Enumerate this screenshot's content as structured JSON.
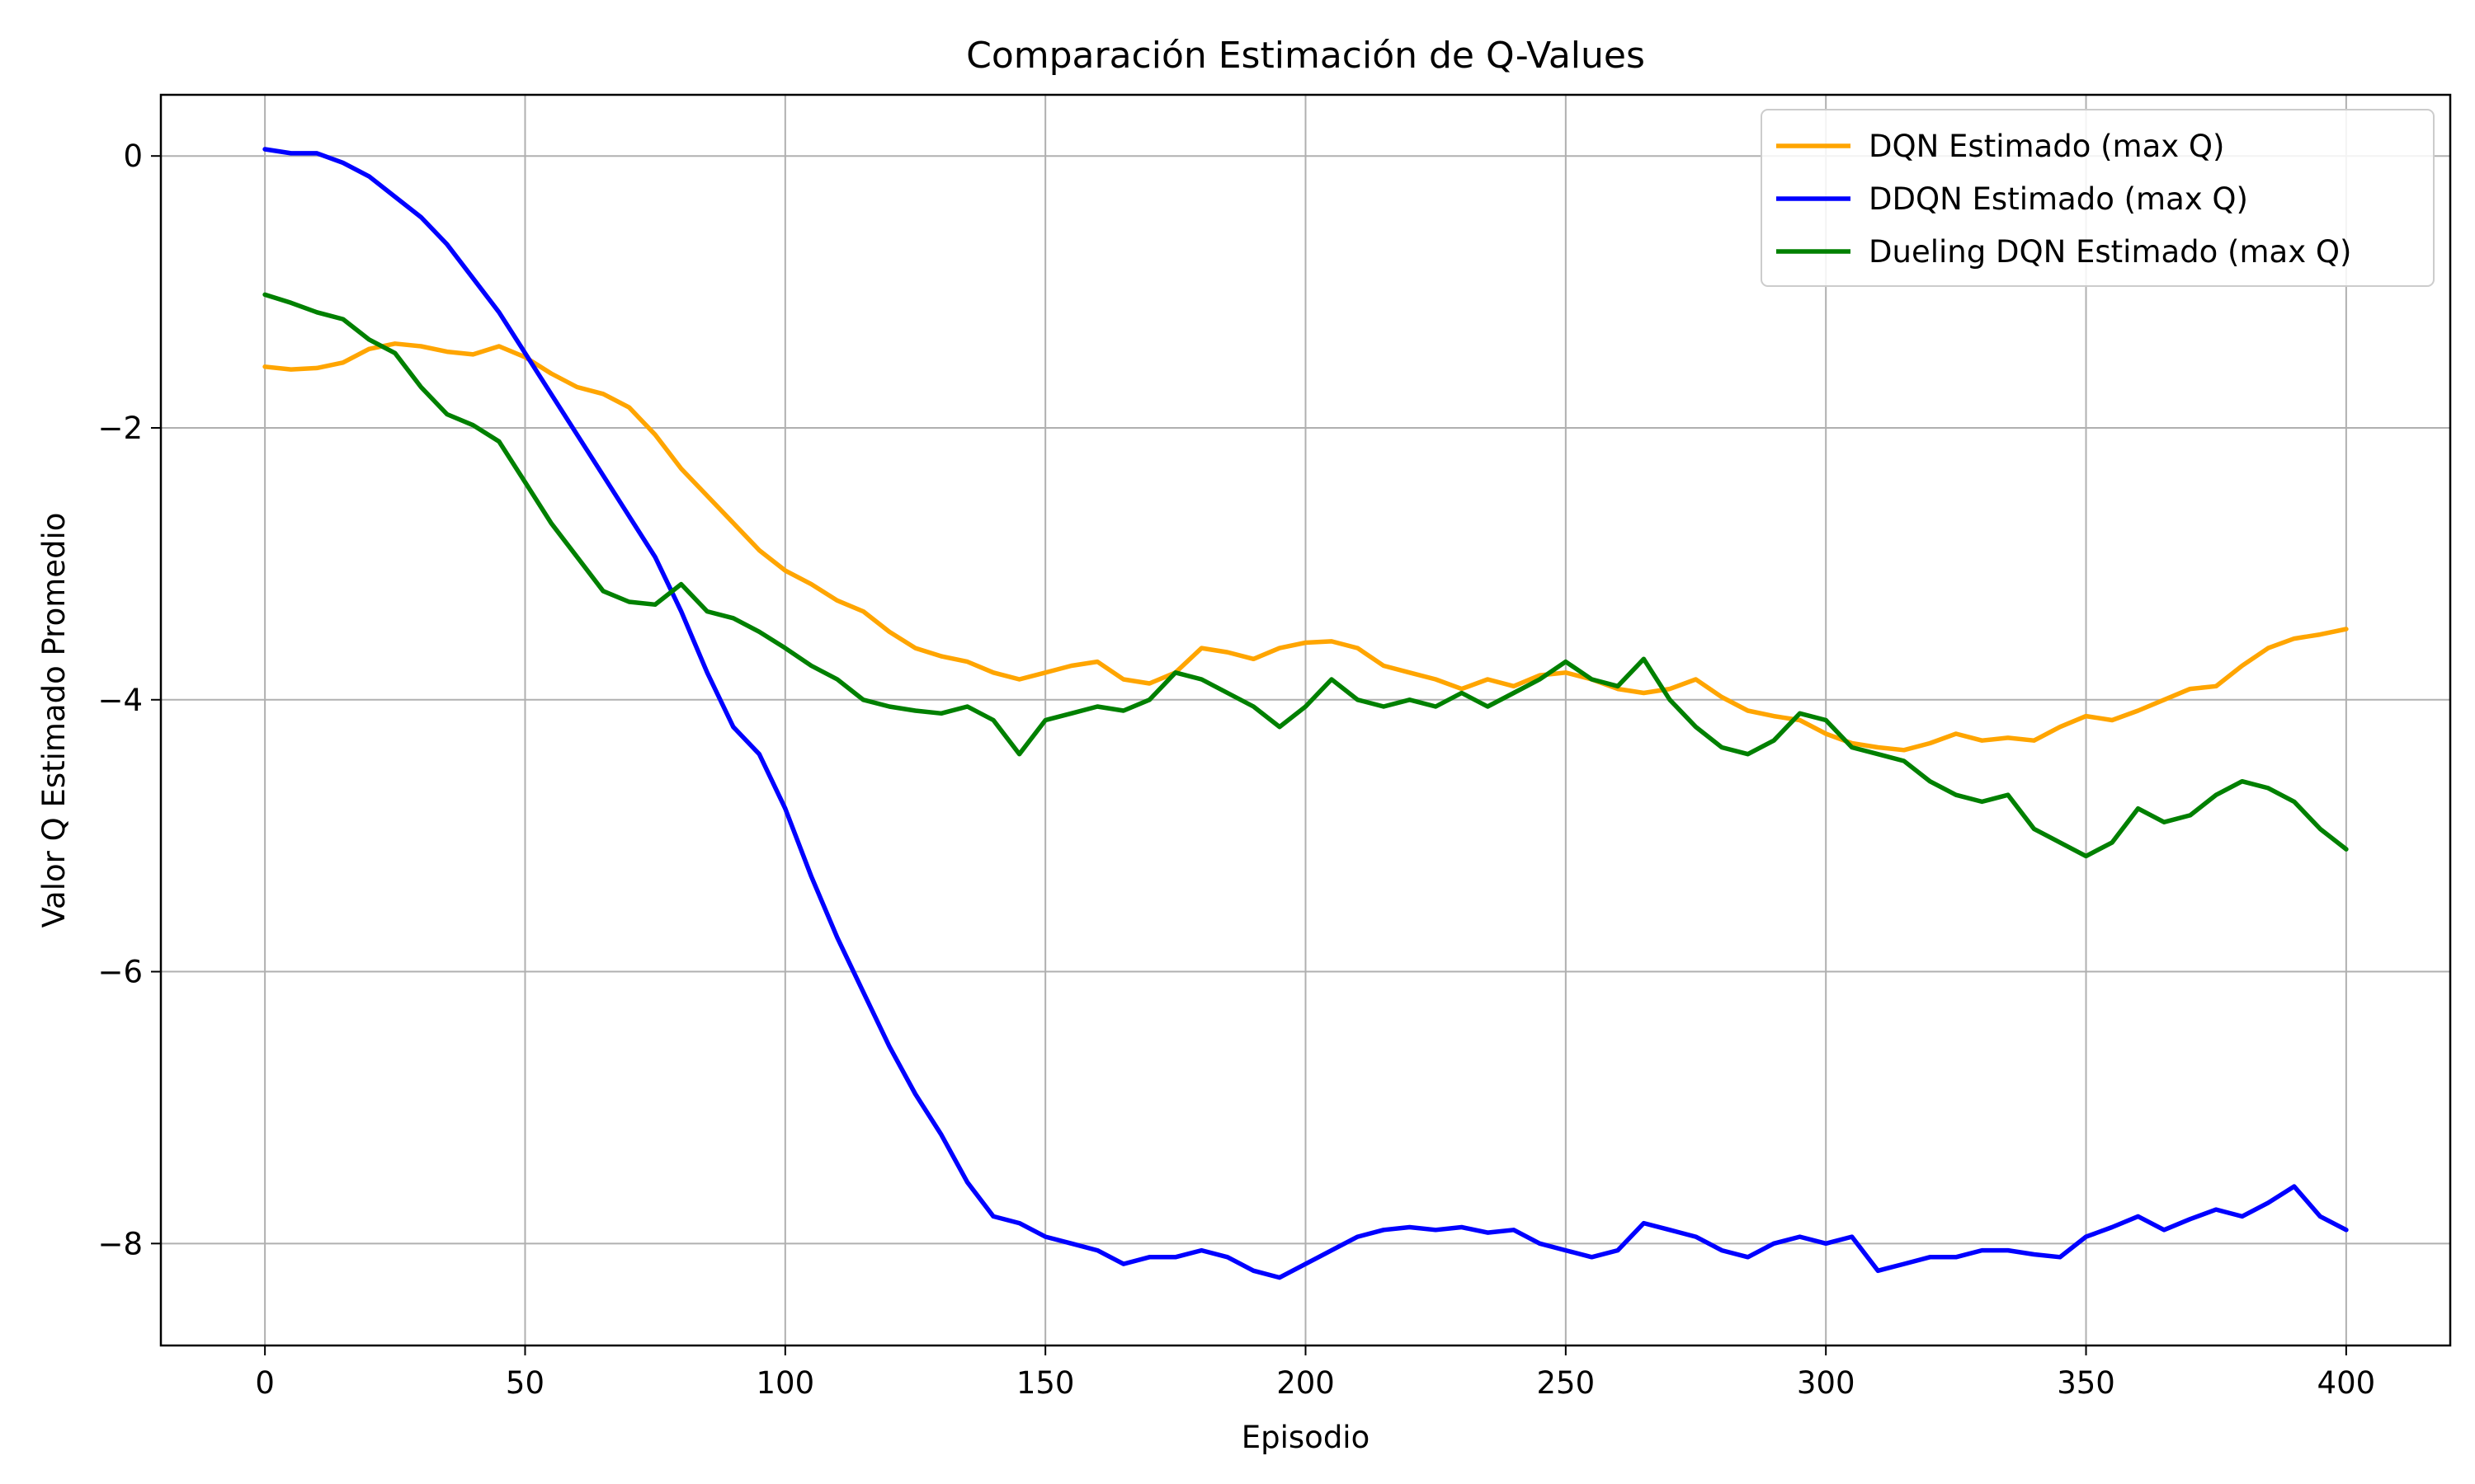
{
  "chart_data": {
    "type": "line",
    "title": "Comparación Estimación de Q-Values",
    "xlabel": "Episodio",
    "ylabel": "Valor Q Estimado Promedio",
    "xlim": [
      -20,
      420
    ],
    "ylim": [
      -8.75,
      0.45
    ],
    "x_ticks": [
      0,
      50,
      100,
      150,
      200,
      250,
      300,
      350,
      400
    ],
    "x_tick_labels": [
      "0",
      "50",
      "100",
      "150",
      "200",
      "250",
      "300",
      "350",
      "400"
    ],
    "y_ticks": [
      0,
      -2,
      -4,
      -6,
      -8
    ],
    "y_tick_labels": [
      "0",
      "−2",
      "−4",
      "−6",
      "−8"
    ],
    "grid": true,
    "legend_position": "top-right",
    "series": [
      {
        "name": "DQN Estimado (max Q)",
        "color": "#ffa500",
        "x": [
          0,
          5,
          10,
          15,
          20,
          25,
          30,
          35,
          40,
          45,
          50,
          55,
          60,
          65,
          70,
          75,
          80,
          85,
          90,
          95,
          100,
          105,
          110,
          115,
          120,
          125,
          130,
          135,
          140,
          145,
          150,
          155,
          160,
          165,
          170,
          175,
          180,
          185,
          190,
          195,
          200,
          205,
          210,
          215,
          220,
          225,
          230,
          235,
          240,
          245,
          250,
          255,
          260,
          265,
          270,
          275,
          280,
          285,
          290,
          295,
          300,
          305,
          310,
          315,
          320,
          325,
          330,
          335,
          340,
          345,
          350,
          355,
          360,
          365,
          370,
          375,
          380,
          385,
          390,
          395,
          400
        ],
        "y": [
          -1.55,
          -1.57,
          -1.56,
          -1.52,
          -1.42,
          -1.38,
          -1.4,
          -1.44,
          -1.46,
          -1.4,
          -1.48,
          -1.6,
          -1.7,
          -1.75,
          -1.85,
          -2.05,
          -2.3,
          -2.5,
          -2.7,
          -2.9,
          -3.05,
          -3.15,
          -3.27,
          -3.35,
          -3.5,
          -3.62,
          -3.68,
          -3.72,
          -3.8,
          -3.85,
          -3.8,
          -3.75,
          -3.72,
          -3.85,
          -3.88,
          -3.8,
          -3.62,
          -3.65,
          -3.7,
          -3.62,
          -3.58,
          -3.57,
          -3.62,
          -3.75,
          -3.8,
          -3.85,
          -3.92,
          -3.85,
          -3.9,
          -3.82,
          -3.8,
          -3.85,
          -3.92,
          -3.95,
          -3.92,
          -3.85,
          -3.98,
          -4.08,
          -4.12,
          -4.15,
          -4.25,
          -4.32,
          -4.35,
          -4.37,
          -4.32,
          -4.25,
          -4.3,
          -4.28,
          -4.3,
          -4.2,
          -4.12,
          -4.15,
          -4.08,
          -4.0,
          -3.92,
          -3.9,
          -3.75,
          -3.62,
          -3.55,
          -3.52,
          -3.48
        ]
      },
      {
        "name": "DDQN Estimado (max Q)",
        "color": "#0000ff",
        "x": [
          0,
          5,
          10,
          15,
          20,
          25,
          30,
          35,
          40,
          45,
          50,
          55,
          60,
          65,
          70,
          75,
          80,
          85,
          90,
          95,
          100,
          105,
          110,
          115,
          120,
          125,
          130,
          135,
          140,
          145,
          150,
          155,
          160,
          165,
          170,
          175,
          180,
          185,
          190,
          195,
          200,
          205,
          210,
          215,
          220,
          225,
          230,
          235,
          240,
          245,
          250,
          255,
          260,
          265,
          270,
          275,
          280,
          285,
          290,
          295,
          300,
          305,
          310,
          315,
          320,
          325,
          330,
          335,
          340,
          345,
          350,
          355,
          360,
          365,
          370,
          375,
          380,
          385,
          390,
          395,
          400
        ],
        "y": [
          0.05,
          0.02,
          0.02,
          -0.05,
          -0.15,
          -0.3,
          -0.45,
          -0.65,
          -0.9,
          -1.15,
          -1.45,
          -1.75,
          -2.05,
          -2.35,
          -2.65,
          -2.95,
          -3.35,
          -3.8,
          -4.2,
          -4.4,
          -4.8,
          -5.3,
          -5.75,
          -6.15,
          -6.55,
          -6.9,
          -7.2,
          -7.55,
          -7.8,
          -7.85,
          -7.95,
          -8.0,
          -8.05,
          -8.15,
          -8.1,
          -8.1,
          -8.05,
          -8.1,
          -8.2,
          -8.25,
          -8.15,
          -8.05,
          -7.95,
          -7.9,
          -7.88,
          -7.9,
          -7.88,
          -7.92,
          -7.9,
          -8.0,
          -8.05,
          -8.1,
          -8.05,
          -7.85,
          -7.9,
          -7.95,
          -8.05,
          -8.1,
          -8.0,
          -7.95,
          -8.0,
          -7.95,
          -8.2,
          -8.15,
          -8.1,
          -8.1,
          -8.05,
          -8.05,
          -8.08,
          -8.1,
          -7.95,
          -7.88,
          -7.8,
          -7.9,
          -7.82,
          -7.75,
          -7.8,
          -7.7,
          -7.58,
          -7.8,
          -7.9
        ]
      },
      {
        "name": "Dueling DQN Estimado (max Q)",
        "color": "#008000",
        "x": [
          0,
          5,
          10,
          15,
          20,
          25,
          30,
          35,
          40,
          45,
          50,
          55,
          60,
          65,
          70,
          75,
          80,
          85,
          90,
          95,
          100,
          105,
          110,
          115,
          120,
          125,
          130,
          135,
          140,
          145,
          150,
          155,
          160,
          165,
          170,
          175,
          180,
          185,
          190,
          195,
          200,
          205,
          210,
          215,
          220,
          225,
          230,
          235,
          240,
          245,
          250,
          255,
          260,
          265,
          270,
          275,
          280,
          285,
          290,
          295,
          300,
          305,
          310,
          315,
          320,
          325,
          330,
          335,
          340,
          345,
          350,
          355,
          360,
          365,
          370,
          375,
          380,
          385,
          390,
          395,
          400
        ],
        "y": [
          -1.02,
          -1.08,
          -1.15,
          -1.2,
          -1.35,
          -1.45,
          -1.7,
          -1.9,
          -1.98,
          -2.1,
          -2.4,
          -2.7,
          -2.95,
          -3.2,
          -3.28,
          -3.3,
          -3.15,
          -3.35,
          -3.4,
          -3.5,
          -3.62,
          -3.75,
          -3.85,
          -4.0,
          -4.05,
          -4.08,
          -4.1,
          -4.05,
          -4.15,
          -4.4,
          -4.15,
          -4.1,
          -4.05,
          -4.08,
          -4.0,
          -3.8,
          -3.85,
          -3.95,
          -4.05,
          -4.2,
          -4.05,
          -3.85,
          -4.0,
          -4.05,
          -4.0,
          -4.05,
          -3.95,
          -4.05,
          -3.95,
          -3.85,
          -3.72,
          -3.85,
          -3.9,
          -3.7,
          -4.0,
          -4.2,
          -4.35,
          -4.4,
          -4.3,
          -4.1,
          -4.15,
          -4.35,
          -4.4,
          -4.45,
          -4.6,
          -4.7,
          -4.75,
          -4.7,
          -4.95,
          -5.05,
          -5.15,
          -5.05,
          -4.8,
          -4.9,
          -4.85,
          -4.7,
          -4.6,
          -4.65,
          -4.75,
          -4.95,
          -5.1
        ]
      }
    ]
  }
}
